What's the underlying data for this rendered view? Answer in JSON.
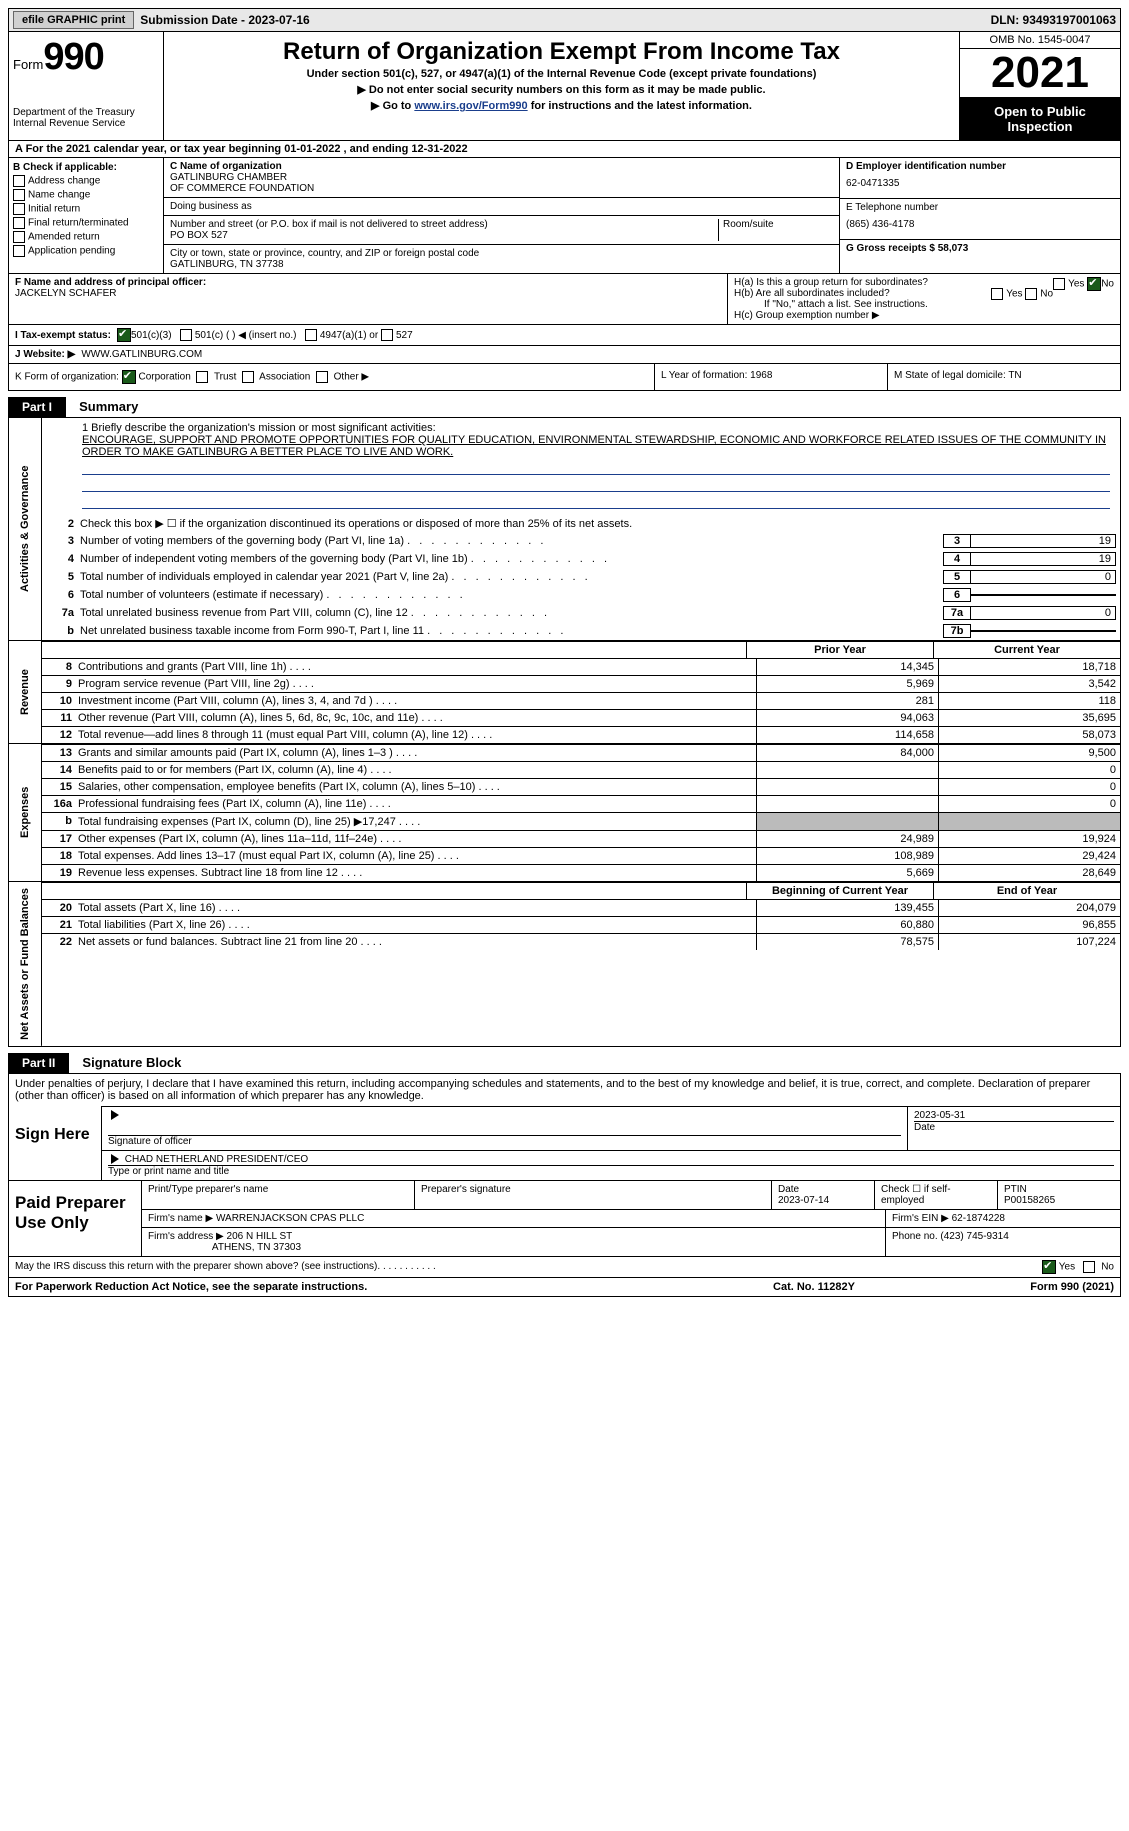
{
  "colors": {
    "link": "#1a3e8c",
    "black": "#000000",
    "grey_bg": "#e8e8e8",
    "shade": "#bbbbbb",
    "check_green": "#1a5a1a"
  },
  "topbar": {
    "efile": "efile GRAPHIC print",
    "submission": "Submission Date - 2023-07-16",
    "dln": "DLN: 93493197001063"
  },
  "header": {
    "form_word": "Form",
    "form_num": "990",
    "title": "Return of Organization Exempt From Income Tax",
    "subtitle": "Under section 501(c), 527, or 4947(a)(1) of the Internal Revenue Code (except private foundations)",
    "line2": "▶ Do not enter social security numbers on this form as it may be made public.",
    "line3_pre": "▶ Go to ",
    "line3_link": "www.irs.gov/Form990",
    "line3_post": " for instructions and the latest information.",
    "dept": "Department of the Treasury Internal Revenue Service",
    "omb": "OMB No. 1545-0047",
    "year": "2021",
    "open": "Open to Public Inspection"
  },
  "line_a": "A For the 2021 calendar year, or tax year beginning 01-01-2022   , and ending 12-31-2022",
  "col_b": {
    "title": "B Check if applicable:",
    "items": [
      "Address change",
      "Name change",
      "Initial return",
      "Final return/terminated",
      "Amended return",
      "Application pending"
    ]
  },
  "col_c": {
    "name_label": "C Name of organization",
    "name1": "GATLINBURG CHAMBER",
    "name2": "OF COMMERCE FOUNDATION",
    "dba": "Doing business as",
    "addr_label": "Number and street (or P.O. box if mail is not delivered to street address)",
    "room": "Room/suite",
    "addr": "PO BOX 527",
    "city_label": "City or town, state or province, country, and ZIP or foreign postal code",
    "city": "GATLINBURG, TN  37738"
  },
  "col_d": {
    "d_label": "D Employer identification number",
    "d_val": "62-0471335",
    "e_label": "E Telephone number",
    "e_val": "(865) 436-4178",
    "g_label": "G Gross receipts $ 58,073"
  },
  "row_f": {
    "f_label": "F  Name and address of principal officer:",
    "f_val": "JACKELYN SCHAFER",
    "ha": "H(a)  Is this a group return for subordinates?",
    "hb": "H(b)  Are all subordinates included?",
    "hb2": "If \"No,\" attach a list. See instructions.",
    "hc": "H(c)  Group exemption number ▶",
    "yes": "Yes",
    "no": "No"
  },
  "row_i": {
    "label": "I   Tax-exempt status:",
    "o1": "501(c)(3)",
    "o2": "501(c) (  ) ◀ (insert no.)",
    "o3": "4947(a)(1) or",
    "o4": "527"
  },
  "row_j": {
    "label": "J  Website: ▶",
    "val": "WWW.GATLINBURG.COM"
  },
  "row_k": {
    "label": "K Form of organization:",
    "o1": "Corporation",
    "o2": "Trust",
    "o3": "Association",
    "o4": "Other ▶",
    "l": "L Year of formation: 1968",
    "m": "M State of legal domicile: TN"
  },
  "part1": {
    "header": "Part I",
    "title": "Summary"
  },
  "mission": {
    "q": "1  Briefly describe the organization's mission or most significant activities:",
    "text": "ENCOURAGE, SUPPORT AND PROMOTE OPPORTUNITIES FOR QUALITY EDUCATION, ENVIRONMENTAL STEWARDSHIP, ECONOMIC AND WORKFORCE RELATED ISSUES OF THE COMMUNITY IN ORDER TO MAKE GATLINBURG A BETTER PLACE TO LIVE AND WORK."
  },
  "gov_lines": [
    {
      "n": "2",
      "t": "Check this box ▶ ☐  if the organization discontinued its operations or disposed of more than 25% of its net assets.",
      "box": "",
      "v": ""
    },
    {
      "n": "3",
      "t": "Number of voting members of the governing body (Part VI, line 1a)",
      "box": "3",
      "v": "19"
    },
    {
      "n": "4",
      "t": "Number of independent voting members of the governing body (Part VI, line 1b)",
      "box": "4",
      "v": "19"
    },
    {
      "n": "5",
      "t": "Total number of individuals employed in calendar year 2021 (Part V, line 2a)",
      "box": "5",
      "v": "0"
    },
    {
      "n": "6",
      "t": "Total number of volunteers (estimate if necessary)",
      "box": "6",
      "v": ""
    },
    {
      "n": "7a",
      "t": "Total unrelated business revenue from Part VIII, column (C), line 12",
      "box": "7a",
      "v": "0"
    },
    {
      "n": "b",
      "t": "Net unrelated business taxable income from Form 990-T, Part I, line 11",
      "box": "7b",
      "v": ""
    }
  ],
  "side_labels": {
    "gov": "Activities & Governance",
    "rev": "Revenue",
    "exp": "Expenses",
    "net": "Net Assets or Fund Balances"
  },
  "col_headers": {
    "prior": "Prior Year",
    "current": "Current Year",
    "begin": "Beginning of Current Year",
    "end": "End of Year"
  },
  "revenue": [
    {
      "n": "8",
      "t": "Contributions and grants (Part VIII, line 1h)",
      "pv": "14,345",
      "cv": "18,718"
    },
    {
      "n": "9",
      "t": "Program service revenue (Part VIII, line 2g)",
      "pv": "5,969",
      "cv": "3,542"
    },
    {
      "n": "10",
      "t": "Investment income (Part VIII, column (A), lines 3, 4, and 7d )",
      "pv": "281",
      "cv": "118"
    },
    {
      "n": "11",
      "t": "Other revenue (Part VIII, column (A), lines 5, 6d, 8c, 9c, 10c, and 11e)",
      "pv": "94,063",
      "cv": "35,695"
    },
    {
      "n": "12",
      "t": "Total revenue—add lines 8 through 11 (must equal Part VIII, column (A), line 12)",
      "pv": "114,658",
      "cv": "58,073"
    }
  ],
  "expenses": [
    {
      "n": "13",
      "t": "Grants and similar amounts paid (Part IX, column (A), lines 1–3 )",
      "pv": "84,000",
      "cv": "9,500"
    },
    {
      "n": "14",
      "t": "Benefits paid to or for members (Part IX, column (A), line 4)",
      "pv": "",
      "cv": "0"
    },
    {
      "n": "15",
      "t": "Salaries, other compensation, employee benefits (Part IX, column (A), lines 5–10)",
      "pv": "",
      "cv": "0"
    },
    {
      "n": "16a",
      "t": "Professional fundraising fees (Part IX, column (A), line 11e)",
      "pv": "",
      "cv": "0"
    },
    {
      "n": "b",
      "t": "Total fundraising expenses (Part IX, column (D), line 25) ▶17,247",
      "pv": "grey",
      "cv": "grey"
    },
    {
      "n": "17",
      "t": "Other expenses (Part IX, column (A), lines 11a–11d, 11f–24e)",
      "pv": "24,989",
      "cv": "19,924"
    },
    {
      "n": "18",
      "t": "Total expenses. Add lines 13–17 (must equal Part IX, column (A), line 25)",
      "pv": "108,989",
      "cv": "29,424"
    },
    {
      "n": "19",
      "t": "Revenue less expenses. Subtract line 18 from line 12",
      "pv": "5,669",
      "cv": "28,649"
    }
  ],
  "netassets": [
    {
      "n": "20",
      "t": "Total assets (Part X, line 16)",
      "pv": "139,455",
      "cv": "204,079"
    },
    {
      "n": "21",
      "t": "Total liabilities (Part X, line 26)",
      "pv": "60,880",
      "cv": "96,855"
    },
    {
      "n": "22",
      "t": "Net assets or fund balances. Subtract line 21 from line 20",
      "pv": "78,575",
      "cv": "107,224"
    }
  ],
  "part2": {
    "header": "Part II",
    "title": "Signature Block"
  },
  "penalties": "Under penalties of perjury, I declare that I have examined this return, including accompanying schedules and statements, and to the best of my knowledge and belief, it is true, correct, and complete. Declaration of preparer (other than officer) is based on all information of which preparer has any knowledge.",
  "sign": {
    "label": "Sign Here",
    "sig_officer": "Signature of officer",
    "date": "Date",
    "date_val": "2023-05-31",
    "name_val": "CHAD NETHERLAND  PRESIDENT/CEO",
    "name_lbl": "Type or print name and title"
  },
  "paid": {
    "label": "Paid Preparer Use Only",
    "h1": "Print/Type preparer's name",
    "h2": "Preparer's signature",
    "h3": "Date",
    "h3v": "2023-07-14",
    "h4": "Check ☐ if self-employed",
    "h5": "PTIN",
    "h5v": "P00158265",
    "firm_name_l": "Firm's name    ▶",
    "firm_name": "WARRENJACKSON CPAS PLLC",
    "firm_ein_l": "Firm's EIN ▶",
    "firm_ein": "62-1874228",
    "firm_addr_l": "Firm's address ▶",
    "firm_addr1": "206 N HILL ST",
    "firm_addr2": "ATHENS, TN  37303",
    "phone_l": "Phone no.",
    "phone": "(423) 745-9314"
  },
  "discuss": {
    "q": "May the IRS discuss this return with the preparer shown above? (see instructions)",
    "yes": "Yes",
    "no": "No"
  },
  "footer": {
    "left": "For Paperwork Reduction Act Notice, see the separate instructions.",
    "mid": "Cat. No. 11282Y",
    "right": "Form 990 (2021)"
  }
}
